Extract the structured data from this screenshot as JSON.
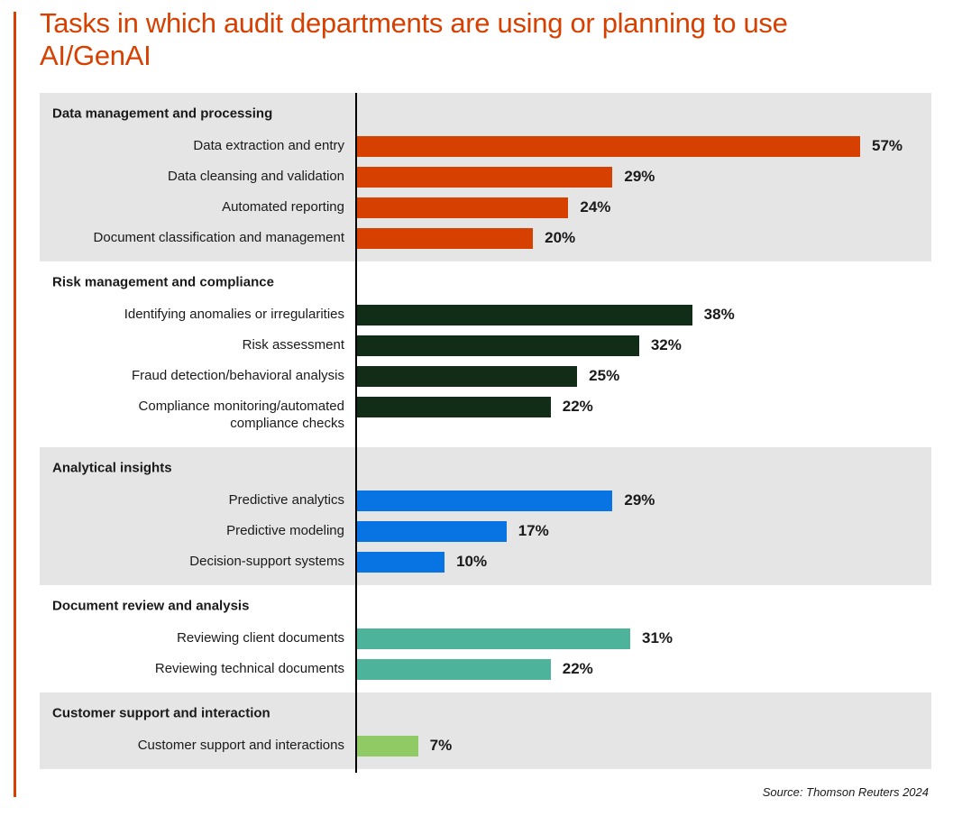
{
  "chart_data": {
    "type": "bar",
    "orientation": "horizontal",
    "title": "Tasks in which audit departments are using or planning to use AI/GenAI",
    "xlim": [
      0,
      57
    ],
    "grid": false,
    "unit": "%",
    "source": "Source: Thomson Reuters 2024",
    "groups": [
      {
        "name": "Data management and processing",
        "color": "#d64000",
        "shaded": true,
        "items": [
          {
            "label": "Data extraction and entry",
            "value": 57
          },
          {
            "label": "Data cleansing and validation",
            "value": 29
          },
          {
            "label": "Automated reporting",
            "value": 24
          },
          {
            "label": "Document classification and management",
            "value": 20
          }
        ]
      },
      {
        "name": "Risk management and compliance",
        "color": "#112d18",
        "shaded": false,
        "items": [
          {
            "label": "Identifying anomalies or irregularities",
            "value": 38
          },
          {
            "label": "Risk assessment",
            "value": 32
          },
          {
            "label": "Fraud detection/behavioral analysis",
            "value": 25
          },
          {
            "label": "Compliance monitoring/automated\ncompliance checks",
            "value": 22
          }
        ]
      },
      {
        "name": "Analytical insights",
        "color": "#0874e3",
        "shaded": true,
        "items": [
          {
            "label": "Predictive analytics",
            "value": 29
          },
          {
            "label": "Predictive modeling",
            "value": 17
          },
          {
            "label": "Decision-support systems",
            "value": 10
          }
        ]
      },
      {
        "name": "Document review and analysis",
        "color": "#4db39a",
        "shaded": false,
        "items": [
          {
            "label": "Reviewing client documents",
            "value": 31
          },
          {
            "label": "Reviewing technical documents",
            "value": 22
          }
        ]
      },
      {
        "name": "Customer support and interaction",
        "color": "#8fca64",
        "shaded": true,
        "items": [
          {
            "label": "Customer support and interactions",
            "value": 7
          }
        ]
      }
    ]
  }
}
